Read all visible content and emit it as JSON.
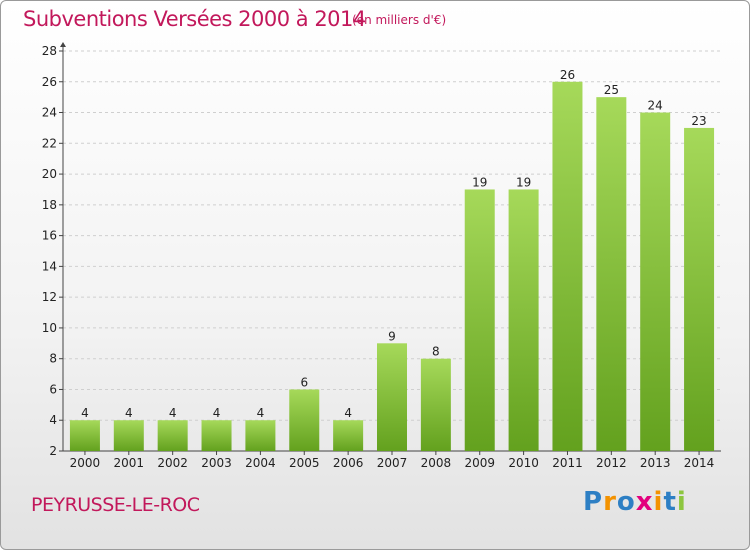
{
  "header": {
    "title": "Subventions Versées 2000 à 2014",
    "unit": "(en milliers d'€)"
  },
  "footer": {
    "town": "PEYRUSSE-LE-ROC",
    "logo": [
      "P",
      "r",
      "o",
      "x",
      "i",
      "t",
      "i"
    ],
    "logo_colors": [
      "#2d7fc4",
      "#f39200",
      "#2d7fc4",
      "#e3007e",
      "#f39200",
      "#2d7fc4",
      "#8dc63f"
    ]
  },
  "colors": {
    "bar_light": "#a6d95a",
    "bar_dark": "#63a11e",
    "grid": "#cfcfcf",
    "accent": "#c2185b"
  },
  "chart_data": {
    "type": "bar",
    "categories": [
      "2000",
      "2001",
      "2002",
      "2003",
      "2004",
      "2005",
      "2006",
      "2007",
      "2008",
      "2009",
      "2010",
      "2011",
      "2012",
      "2013",
      "2014"
    ],
    "values": [
      4,
      4,
      4,
      4,
      4,
      6,
      4,
      9,
      8,
      19,
      19,
      26,
      25,
      24,
      23
    ],
    "ylim": [
      2,
      28
    ],
    "yticks": [
      2,
      4,
      6,
      8,
      10,
      12,
      14,
      16,
      18,
      20,
      22,
      24,
      26,
      28
    ],
    "grid": true,
    "data_labels": true
  }
}
